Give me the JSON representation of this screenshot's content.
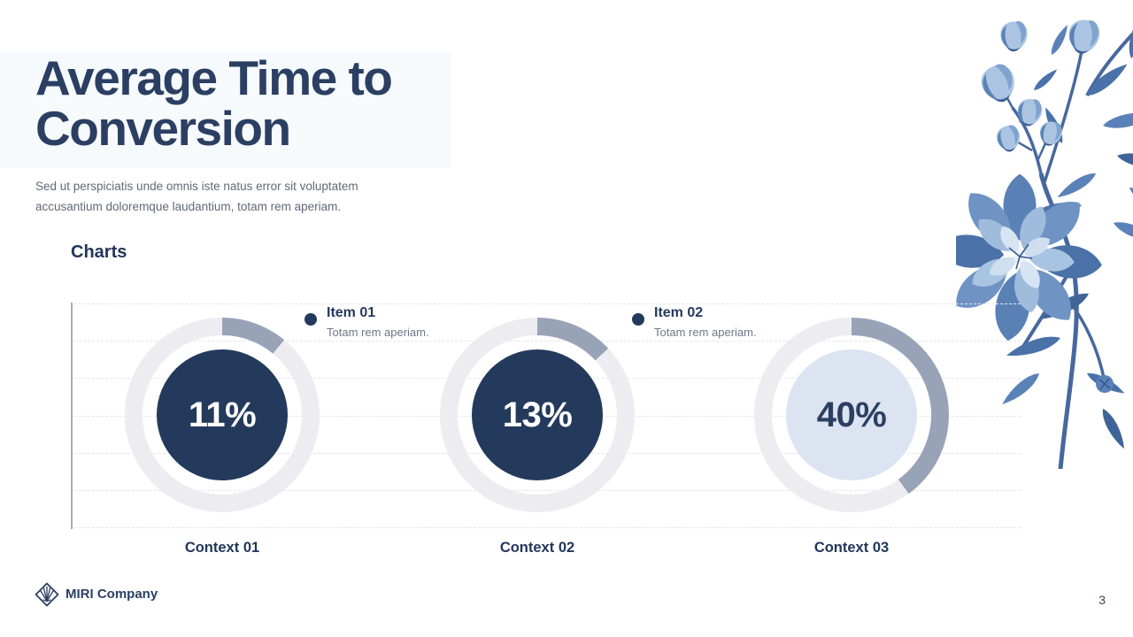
{
  "header": {
    "title": "Average Time to Conversion",
    "subtitle": "Sed ut perspiciatis unde omnis iste natus error sit voluptatem accusantium doloremque laudantium, totam rem aperiam."
  },
  "section": {
    "heading": "Charts"
  },
  "chart_data": {
    "type": "donut-progress",
    "grid": true,
    "gridline_count": 7,
    "legend_position": "top",
    "items": [
      {
        "label": "Context 01",
        "value": 11,
        "value_label": "11%",
        "style": "dark"
      },
      {
        "label": "Context 02",
        "value": 13,
        "value_label": "13%",
        "style": "dark"
      },
      {
        "label": "Context 03",
        "value": 40,
        "value_label": "40%",
        "style": "light"
      }
    ],
    "legend": [
      {
        "title": "Item 01",
        "description": "Totam rem aperiam."
      },
      {
        "title": "Item 02",
        "description": "Totam rem aperiam."
      }
    ]
  },
  "footer": {
    "company": "MIRI Company",
    "page_number": "3"
  },
  "colors": {
    "navy": "#2b3f63",
    "heading_navy": "#22365a",
    "donut_fill_dark": "#243a5c",
    "donut_fill_light": "#dce4f1",
    "progress_arc": "#99a3b8",
    "ring_track": "#ededf1",
    "gridline": "#e2e5ea",
    "muted_text": "#5f6a76",
    "flower_blue": "#5b82b8"
  }
}
